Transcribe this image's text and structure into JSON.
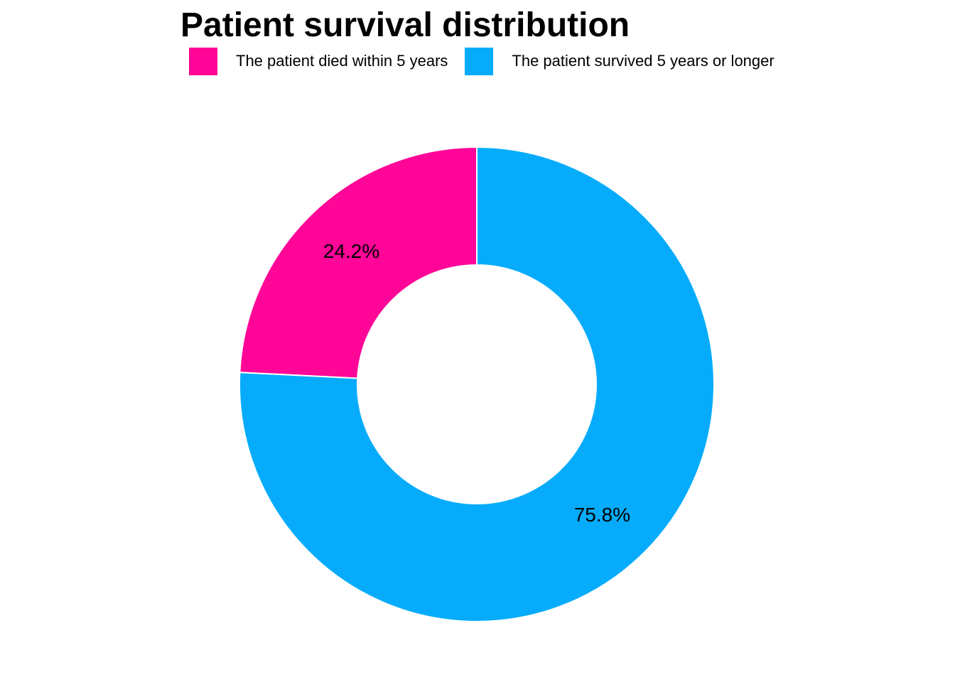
{
  "chart_data": {
    "type": "pie",
    "title": "Patient survival distribution",
    "subtitle": "",
    "legend_position": "top",
    "donut": true,
    "slices": [
      {
        "label": "The patient died within 5 years",
        "value": 24.2,
        "display": "24.2%",
        "color": "#FF0598"
      },
      {
        "label": "The patient survived 5 years or longer",
        "value": 75.8,
        "display": "75.8%",
        "color": "#06ACFB"
      }
    ]
  }
}
